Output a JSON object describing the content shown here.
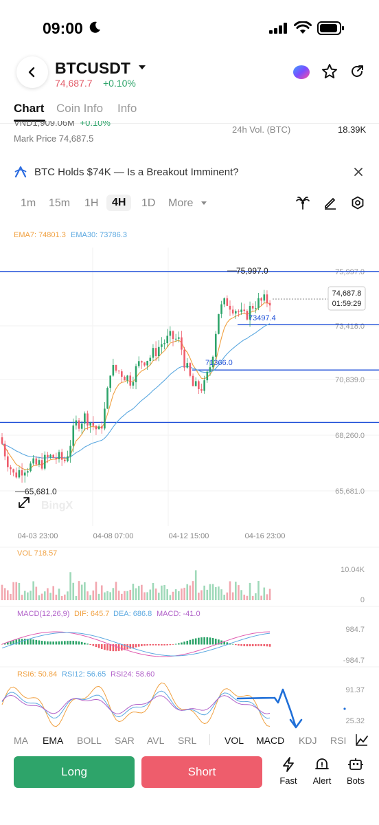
{
  "status_bar": {
    "time": "09:00"
  },
  "header": {
    "symbol": "BTCUSDT",
    "last_price": "74,687.7",
    "change": "+0.10%"
  },
  "tabs": [
    {
      "label": "Chart",
      "active": true
    },
    {
      "label": "Coin Info",
      "active": false
    },
    {
      "label": "Info",
      "active": false
    }
  ],
  "stats": {
    "turnover": "VND1,909.06M",
    "turnover_change": "+0.10%",
    "mark_price": "Mark Price 74,687.5",
    "vol_label": "24h Vol. (BTC)",
    "vol_value": "18.39K"
  },
  "news": {
    "text": "BTC Holds $74K — Is a Breakout Imminent?"
  },
  "intervals": [
    "1m",
    "15m",
    "1H",
    "4H",
    "1D",
    "More"
  ],
  "active_interval": "4H",
  "chart": {
    "ema7_label": "EMA7: 74801.3",
    "ema30_label": "EMA30: 73786.3",
    "price_ticks": [
      "75,997.0",
      "73,418.0",
      "70,839.0",
      "68,260.0",
      "65,681.0"
    ],
    "high_label": "75,997.0",
    "low_label": "65,681.0",
    "current_price": "74,687.8",
    "countdown": "01:59:29",
    "line_label_a": "73497.4",
    "line_label_b": "71366.0",
    "watermark": "BingX",
    "time_ticks": [
      "04-03 23:00",
      "04-08 07:00",
      "04-12 15:00",
      "04-16 23:00"
    ],
    "vol_label": "VOL 718.57",
    "vol_ticks": [
      "10.04K",
      "0"
    ],
    "macd_label": "MACD(12,26,9)",
    "dif_label": "DIF: 645.7",
    "dea_label": "DEA: 686.8",
    "macd_value_label": "MACD: -41.0",
    "macd_ticks": [
      "984.7",
      "-984.7"
    ],
    "rsi6_label": "RSI6: 50.84",
    "rsi12_label": "RSI12: 56.65",
    "rsi24_label": "RSI24: 58.60",
    "rsi_ticks": [
      "91.37",
      "25.32"
    ],
    "colors": {
      "up": "#2ea46a",
      "down": "#ee5d6c",
      "ema7": "#f0a040",
      "ema30": "#5ba8e0",
      "line": "#1f4fd8"
    }
  },
  "indicator_tabs": [
    {
      "label": "MA",
      "on": false
    },
    {
      "label": "EMA",
      "on": true
    },
    {
      "label": "BOLL",
      "on": false
    },
    {
      "label": "SAR",
      "on": false
    },
    {
      "label": "AVL",
      "on": false
    },
    {
      "label": "SRL",
      "on": false
    },
    {
      "label": "VOL",
      "on": true
    },
    {
      "label": "MACD",
      "on": true
    },
    {
      "label": "KDJ",
      "on": false
    },
    {
      "label": "RSI",
      "on": false
    }
  ],
  "bottom": {
    "long_label": "Long",
    "short_label": "Short",
    "fast_label": "Fast",
    "alert_label": "Alert",
    "bots_label": "Bots"
  }
}
